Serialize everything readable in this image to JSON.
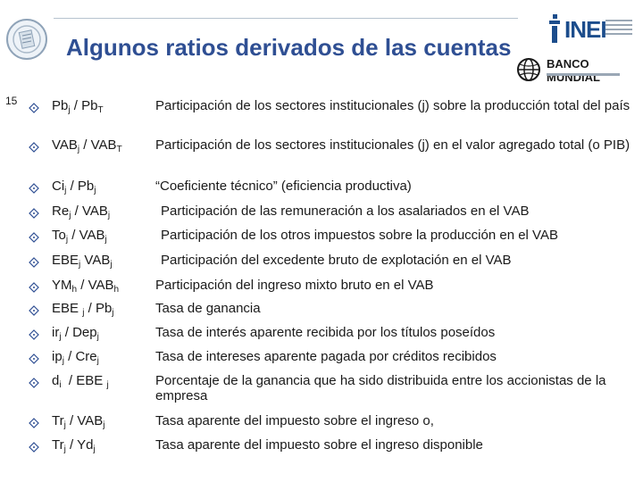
{
  "header": {
    "title": "Algunos ratios derivados de las cuentas",
    "page_number": "15",
    "logos": {
      "inei_text": "INEI",
      "banco_mundial_text": "BANCO MUNDIAL"
    }
  },
  "colors": {
    "title": "#2f4f93",
    "bullet": "#2f4f93",
    "text": "#1a1a1a"
  },
  "rows": [
    {
      "left": {
        "a": "Pb",
        "a_sub": "j",
        "sep": " / ",
        "b": "Pb",
        "b_sub": "T"
      },
      "right": "Participación de los sectores institucionales (j) sobre la producción total del país"
    },
    {
      "left": {
        "a": "VAB",
        "a_sub": "j",
        "sep": " / ",
        "b": "VAB",
        "b_sub": "T"
      },
      "right": "Participación de los sectores institucionales (j) en el valor agregado total (o  PIB)"
    },
    {
      "left": {
        "a": "Ci",
        "a_sub": "j",
        "sep": " / ",
        "b": "Pb",
        "b_sub": "j"
      },
      "right": "“Coeficiente técnico” (eficiencia productiva)"
    },
    {
      "left": {
        "a": "Re",
        "a_sub": "j",
        "sep": " / ",
        "b": "VAB",
        "b_sub": "j"
      },
      "right": "Participación de las remuneración a los asalariados en el VAB"
    },
    {
      "left": {
        "a": "To",
        "a_sub": "j",
        "sep": " / ",
        "b": "VAB",
        "b_sub": "j"
      },
      "right": "Participación de los otros impuestos sobre la producción en el VAB"
    },
    {
      "left": {
        "a": "EBE",
        "a_sub": "j",
        "sep": " ",
        "b": "VAB",
        "b_sub": "j"
      },
      "right": "Participación del excedente bruto de explotación en el VAB"
    },
    {
      "left": {
        "a": "YM",
        "a_sub": "h",
        "sep": " / ",
        "b": "VAB",
        "b_sub": "h"
      },
      "right": "Participación del ingreso mixto bruto en el VAB"
    },
    {
      "left": {
        "a": "EBE ",
        "a_sub": "j",
        "sep": " / ",
        "b": "Pb",
        "b_sub": "j"
      },
      "right": "Tasa de ganancia"
    },
    {
      "left": {
        "a": "ir",
        "a_sub": "j",
        "sep": " / ",
        "b": "Dep",
        "b_sub": "j"
      },
      "right": "Tasa de interés aparente recibida por los títulos poseídos"
    },
    {
      "left": {
        "a": "ip",
        "a_sub": "j",
        "sep": " / ",
        "b": "Cre",
        "b_sub": "j"
      },
      "right": "Tasa de intereses aparente pagada por créditos recibidos"
    },
    {
      "left": {
        "a": "d",
        "a_sub": "i",
        "sep": "  / ",
        "b": "EBE ",
        "b_sub": "j"
      },
      "right": "Porcentaje de la ganancia que ha sido distribuida entre los accionistas de la empresa"
    },
    {
      "left": {
        "a": "Tr",
        "a_sub": "j",
        "sep": " / ",
        "b": "VAB",
        "b_sub": "j"
      },
      "right": "Tasa aparente del impuesto sobre el ingreso o,"
    },
    {
      "left": {
        "a": "Tr",
        "a_sub": "j",
        "sep": " / ",
        "b": "Yd",
        "b_sub": "j"
      },
      "right": "Tasa aparente del impuesto sobre el ingreso disponible"
    }
  ]
}
